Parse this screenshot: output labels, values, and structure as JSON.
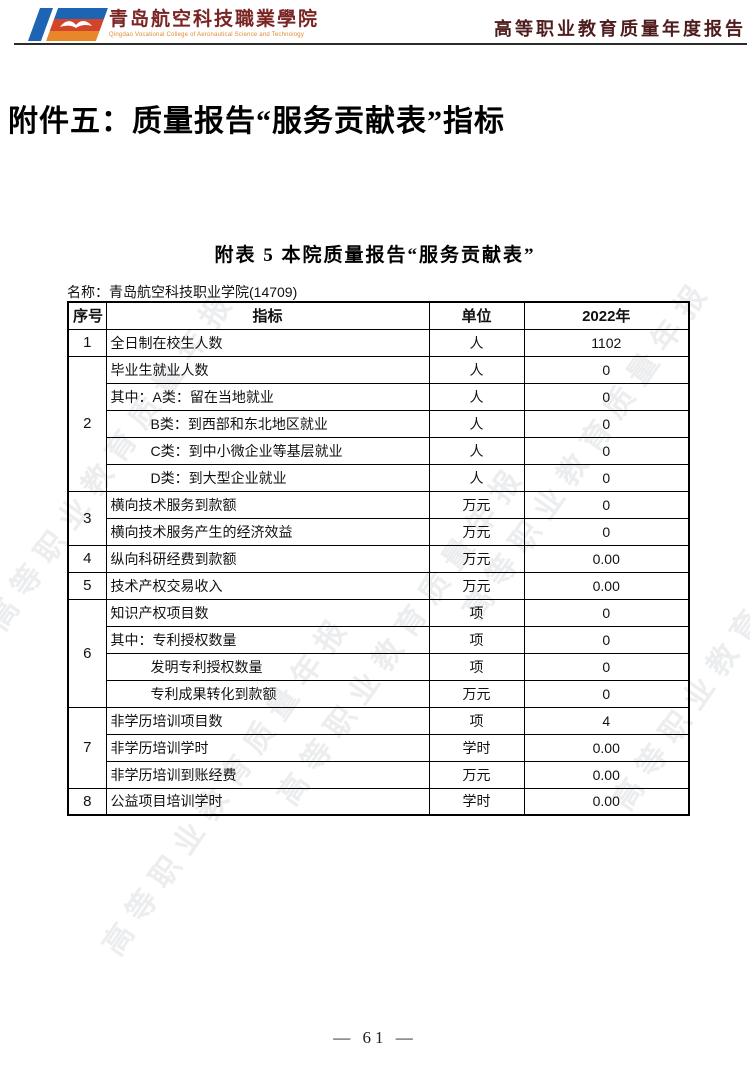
{
  "header": {
    "college_name": "青岛航空科技職業學院",
    "college_name_en": "Qingdao Vocational College of Aeronautical Science and Technology",
    "report_title": "高等职业教育质量年度报告"
  },
  "main": {
    "attachment_title": "附件五：质量报告“服务贡献表”指标",
    "table_caption": "附表 5 本院质量报告“服务贡献表”",
    "name_label": "名称：",
    "name_value": "青岛航空科技职业学院(14709)"
  },
  "table": {
    "headers": [
      "序号",
      "指标",
      "单位",
      "2022年"
    ],
    "groups": [
      {
        "seq": "1",
        "rows": [
          {
            "indicator": "全日制在校生人数",
            "unit": "人",
            "value": "1102",
            "indent": false
          }
        ]
      },
      {
        "seq": "2",
        "rows": [
          {
            "indicator": "毕业生就业人数",
            "unit": "人",
            "value": "0",
            "indent": false
          },
          {
            "indicator": "其中：A类：留在当地就业",
            "unit": "人",
            "value": "0",
            "indent": false
          },
          {
            "indicator": "B类：到西部和东北地区就业",
            "unit": "人",
            "value": "0",
            "indent": true
          },
          {
            "indicator": "C类：到中小微企业等基层就业",
            "unit": "人",
            "value": "0",
            "indent": true
          },
          {
            "indicator": "D类：到大型企业就业",
            "unit": "人",
            "value": "0",
            "indent": true
          }
        ]
      },
      {
        "seq": "3",
        "rows": [
          {
            "indicator": "横向技术服务到款额",
            "unit": "万元",
            "value": "0",
            "indent": false
          },
          {
            "indicator": "横向技术服务产生的经济效益",
            "unit": "万元",
            "value": "0",
            "indent": false
          }
        ]
      },
      {
        "seq": "4",
        "rows": [
          {
            "indicator": "纵向科研经费到款额",
            "unit": "万元",
            "value": "0.00",
            "indent": false
          }
        ]
      },
      {
        "seq": "5",
        "rows": [
          {
            "indicator": "技术产权交易收入",
            "unit": "万元",
            "value": "0.00",
            "indent": false
          }
        ]
      },
      {
        "seq": "6",
        "rows": [
          {
            "indicator": "知识产权项目数",
            "unit": "项",
            "value": "0",
            "indent": false
          },
          {
            "indicator": "其中：专利授权数量",
            "unit": "项",
            "value": "0",
            "indent": false
          },
          {
            "indicator": "发明专利授权数量",
            "unit": "项",
            "value": "0",
            "indent": true
          },
          {
            "indicator": "专利成果转化到款额",
            "unit": "万元",
            "value": "0",
            "indent": true
          }
        ]
      },
      {
        "seq": "7",
        "rows": [
          {
            "indicator": "非学历培训项目数",
            "unit": "项",
            "value": "4",
            "indent": false
          },
          {
            "indicator": "非学历培训学时",
            "unit": "学时",
            "value": "0.00",
            "indent": false
          },
          {
            "indicator": "非学历培训到账经费",
            "unit": "万元",
            "value": "0.00",
            "indent": false
          }
        ]
      },
      {
        "seq": "8",
        "rows": [
          {
            "indicator": "公益项目培训学时",
            "unit": "学时",
            "value": "0.00",
            "indent": false
          }
        ]
      }
    ]
  },
  "watermark": {
    "text": "高等职业教育质量年报"
  },
  "footer": {
    "page_number": "— 61 —"
  },
  "colors": {
    "brand_maroon": "#7a2424",
    "logo_blue": "#1d64b5",
    "logo_red": "#d2452a",
    "logo_orange": "#e8862a",
    "subtitle_orange": "#e08a35"
  }
}
